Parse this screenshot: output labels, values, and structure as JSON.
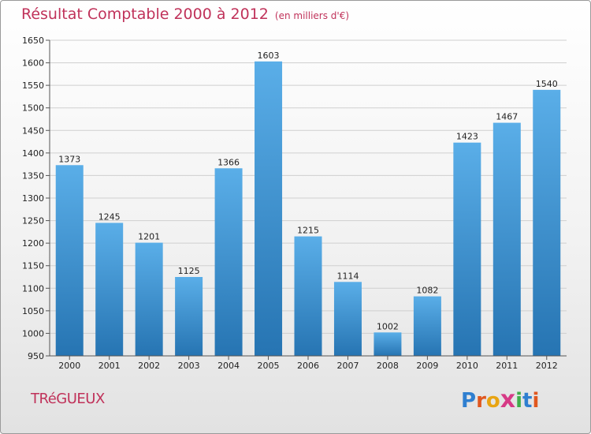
{
  "header": {
    "title": "Résultat Comptable 2000 à 2012",
    "unit": "(en milliers d'€)"
  },
  "footer": {
    "commune": "TRéGUEUX",
    "logo_letters": [
      "P",
      "r",
      "o",
      "x",
      "i",
      "t",
      "i"
    ],
    "logo_colors": [
      "#2f7fd0",
      "#e0571f",
      "#e8a412",
      "#d63a86",
      "#3fae49",
      "#2f7fd0",
      "#e0571f"
    ]
  },
  "colors": {
    "bar_top": "#5aaee8",
    "bar_bottom": "#2674b2",
    "grid": "#cfcfcf",
    "axis": "#555555",
    "text": "#222222",
    "title": "#c0325a"
  },
  "chart_data": {
    "type": "bar",
    "title": "Résultat Comptable 2000 à 2012",
    "xlabel": "",
    "ylabel": "",
    "ylim": [
      950,
      1650
    ],
    "yticks": [
      950,
      1000,
      1050,
      1100,
      1150,
      1200,
      1250,
      1300,
      1350,
      1400,
      1450,
      1500,
      1550,
      1600,
      1650
    ],
    "grid": true,
    "categories": [
      "2000",
      "2001",
      "2002",
      "2003",
      "2004",
      "2005",
      "2006",
      "2007",
      "2008",
      "2009",
      "2010",
      "2011",
      "2012"
    ],
    "values": [
      1373,
      1245,
      1201,
      1125,
      1366,
      1603,
      1215,
      1114,
      1002,
      1082,
      1423,
      1467,
      1540
    ]
  }
}
